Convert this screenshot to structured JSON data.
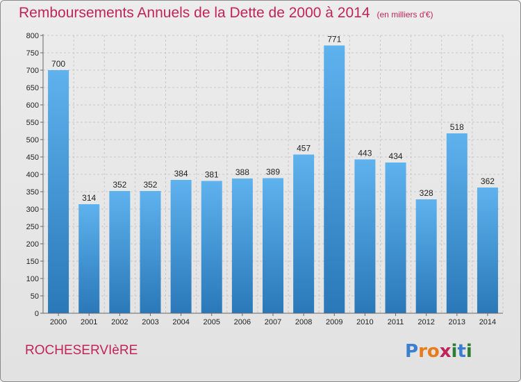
{
  "title": "Remboursements Annuels de la Dette de 2000 à 2014",
  "unit_label": "(en milliers d'€)",
  "city": "ROCHESERVIèRE",
  "logo": {
    "letters": [
      "P",
      "r",
      "o",
      "x",
      "i",
      "t",
      "i"
    ],
    "colors": [
      "#3a7fd0",
      "#e87b1c",
      "#e87b1c",
      "#c0245a",
      "#2e7d32",
      "#3a7fd0",
      "#2e7d32"
    ]
  },
  "colors": {
    "bar_light": "#5eb2ee",
    "bar_dark": "#2a78b8",
    "accent": "#c0245a"
  },
  "chart_data": {
    "type": "bar",
    "title": "Remboursements Annuels de la Dette de 2000 à 2014",
    "xlabel": "",
    "ylabel": "",
    "categories": [
      "2000",
      "2001",
      "2002",
      "2003",
      "2004",
      "2005",
      "2006",
      "2007",
      "2008",
      "2009",
      "2010",
      "2011",
      "2012",
      "2013",
      "2014"
    ],
    "values": [
      700,
      314,
      352,
      352,
      384,
      381,
      388,
      389,
      457,
      771,
      443,
      434,
      328,
      518,
      362
    ],
    "value_labels": [
      "700",
      "314",
      "352",
      "352",
      "384",
      "381",
      "388",
      "389",
      "457",
      "771",
      "443",
      "434",
      "328",
      "518",
      "362"
    ],
    "ylim": [
      0,
      800
    ],
    "yticks": [
      0,
      50,
      100,
      150,
      200,
      250,
      300,
      350,
      400,
      450,
      500,
      550,
      600,
      650,
      700,
      750,
      800
    ],
    "grid": true
  }
}
